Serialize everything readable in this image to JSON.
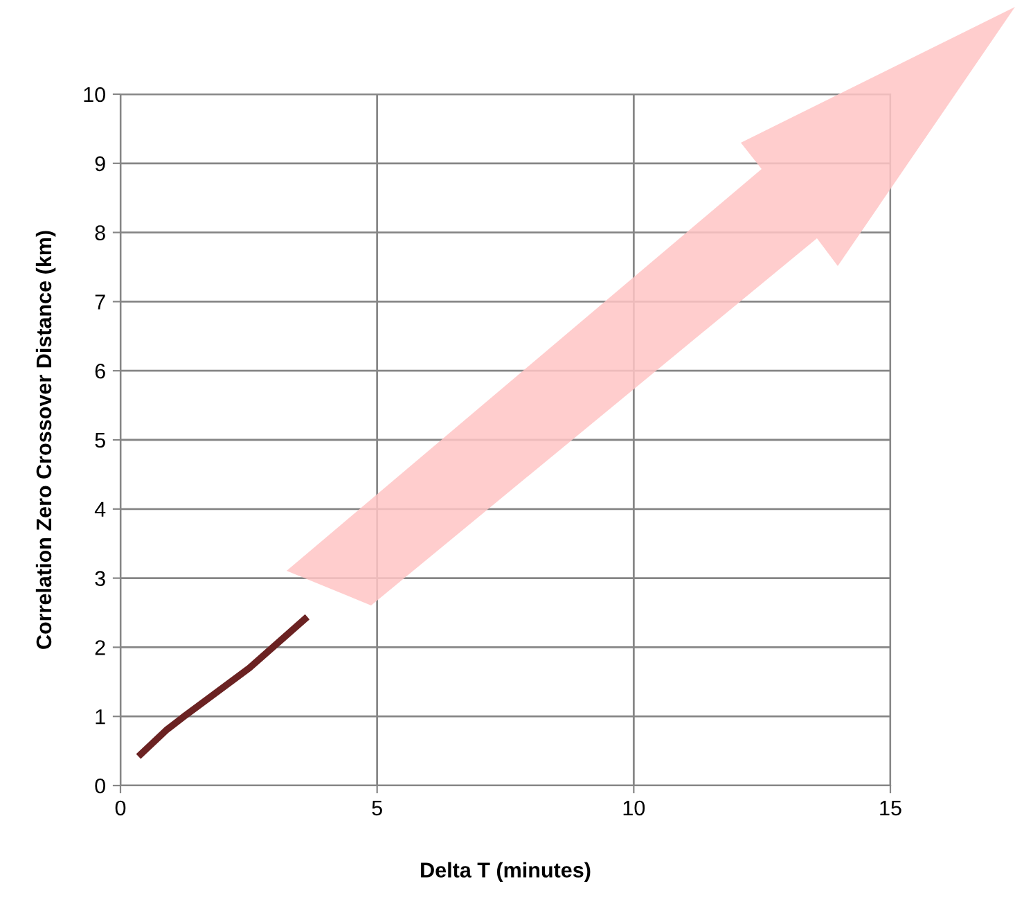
{
  "chart_data": {
    "type": "line",
    "xlabel": "Delta T (minutes)",
    "ylabel": "Correlation Zero Crossover Distance (km)",
    "x": [
      0.35,
      0.89,
      1.24,
      2.51,
      3.64
    ],
    "series": [
      {
        "color": "#6b2222",
        "values": [
          0.42,
          0.8,
          1.0,
          1.7,
          2.44
        ]
      }
    ],
    "xlim": [
      0,
      15
    ],
    "ylim": [
      0,
      10
    ],
    "xticks": [
      0,
      5,
      10,
      15
    ],
    "yticks": [
      0,
      1,
      2,
      3,
      4,
      5,
      6,
      7,
      8,
      9,
      10
    ],
    "grid": true,
    "marker": "none",
    "line_style": "solid"
  }
}
